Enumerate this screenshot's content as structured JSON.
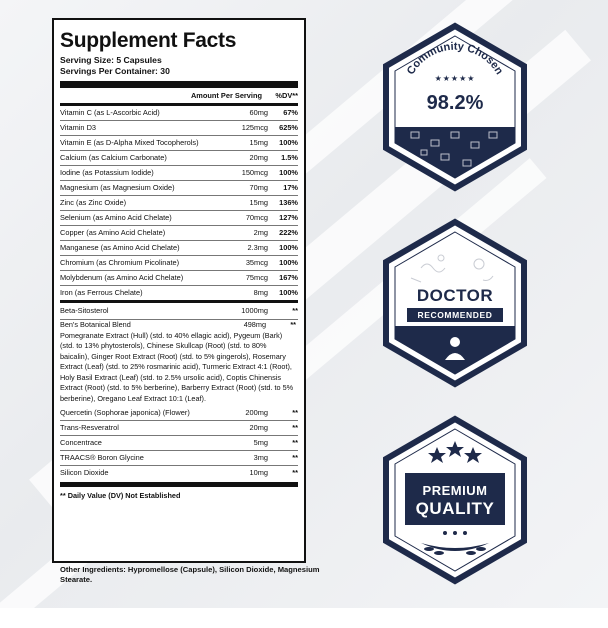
{
  "facts": {
    "title": "Supplement Facts",
    "serving_size": "Serving Size: 5 Capsules",
    "servings_per_container": "Servings Per Container: 30",
    "header_amount": "Amount Per Serving",
    "header_dv": "%DV**",
    "rows_top": [
      {
        "name": "Vitamin C (as L-Ascorbic Acid)",
        "amount": "60mg",
        "dv": "67%"
      },
      {
        "name": "Vitamin D3",
        "amount": "125mcg",
        "dv": "625%"
      },
      {
        "name": "Vitamin E (as D-Alpha Mixed Tocopherols)",
        "amount": "15mg",
        "dv": "100%"
      },
      {
        "name": "Calcium (as Calcium Carbonate)",
        "amount": "20mg",
        "dv": "1.5%"
      },
      {
        "name": "Iodine (as Potassium Iodide)",
        "amount": "150mcg",
        "dv": "100%"
      },
      {
        "name": "Magnesium (as Magnesium Oxide)",
        "amount": "70mg",
        "dv": "17%"
      },
      {
        "name": "Zinc (as Zinc Oxide)",
        "amount": "15mg",
        "dv": "136%"
      },
      {
        "name": "Selenium (as Amino Acid Chelate)",
        "amount": "70mcg",
        "dv": "127%"
      },
      {
        "name": "Copper (as Amino Acid Chelate)",
        "amount": "2mg",
        "dv": "222%"
      },
      {
        "name": "Manganese (as Amino Acid Chelate)",
        "amount": "2.3mg",
        "dv": "100%"
      },
      {
        "name": "Chromium (as Chromium Picolinate)",
        "amount": "35mcg",
        "dv": "100%"
      },
      {
        "name": "Molybdenum (as Amino Acid Chelate)",
        "amount": "75mcg",
        "dv": "167%"
      },
      {
        "name": "Iron (as Ferrous Chelate)",
        "amount": "8mg",
        "dv": "100%"
      }
    ],
    "beta": {
      "name": "Beta-Sitosterol",
      "amount": "1000mg",
      "dv": "**"
    },
    "blend": {
      "name": "Ben's Botanical Blend",
      "amount": "498mg",
      "dv": "**",
      "ingredients": "Pomegranate Extract (Hull) (std. to 40% ellagic acid), Pygeum (Bark) (std. to 13% phytosterols), Chinese Skullcap (Root) (std. to 80% baicalin), Ginger Root Extract (Root) (std. to 5% gingerols), Rosemary Extract (Leaf) (std. to 25% rosmarinic acid), Turmeric Extract 4:1 (Root), Holy Basil Extract (Leaf) (std. to 2.5% ursolic acid), Coptis Chinensis Extract (Root) (std. to 5% berberine), Barberry Extract (Root) (std. to 5% berberine), Oregano Leaf Extract 10:1 (Leaf)."
    },
    "rows_bottom": [
      {
        "name": "Quercetin (Sophorae japonica) (Flower)",
        "amount": "200mg",
        "dv": "**"
      },
      {
        "name": "Trans-Resveratrol",
        "amount": "20mg",
        "dv": "**"
      },
      {
        "name": "Concentrace",
        "amount": "5mg",
        "dv": "**"
      },
      {
        "name": "TRAACS® Boron Glycine",
        "amount": "3mg",
        "dv": "**"
      },
      {
        "name": "Silicon Dioxide",
        "amount": "10mg",
        "dv": "**"
      }
    ],
    "footnote": "** Daily Value (DV) Not Established"
  },
  "other_ingredients": "Other Ingredients: Hypromellose (Capsule), Silicon Dioxide, Magnesium Stearate.",
  "badges": {
    "community": {
      "label": "Community Chosen",
      "stars": "★★★★★",
      "value": "98.2%"
    },
    "doctor": {
      "line1": "DOCTOR",
      "line2": "RECOMMENDED"
    },
    "premium": {
      "line1": "PREMIUM",
      "line2": "QUALITY"
    }
  },
  "colors": {
    "navy": "#1e2a4a",
    "ink": "#111111"
  }
}
